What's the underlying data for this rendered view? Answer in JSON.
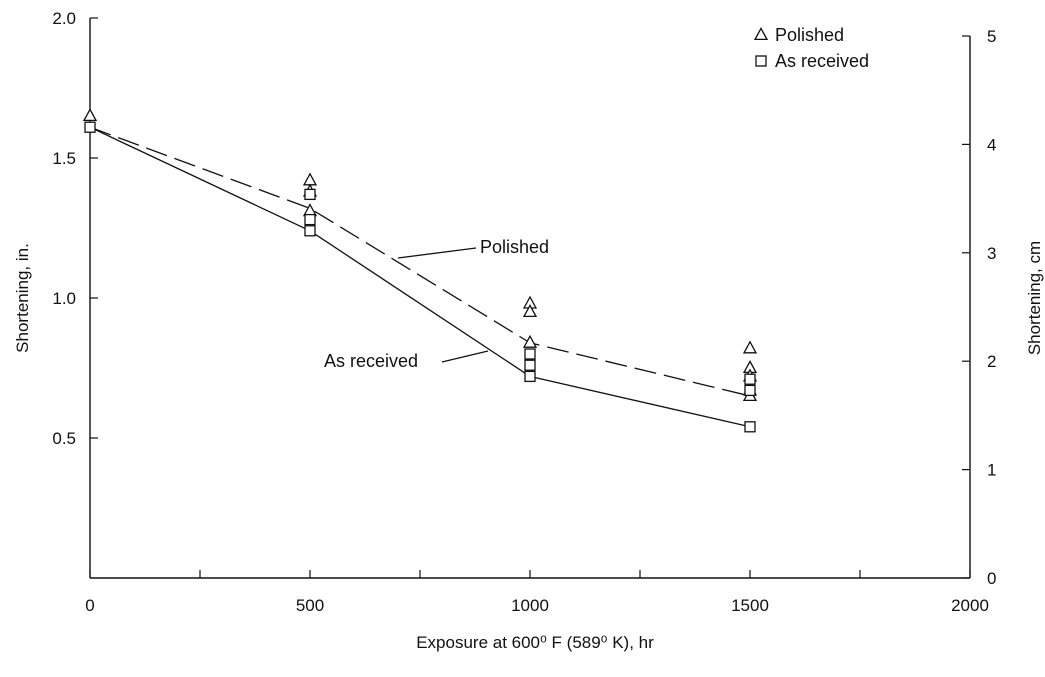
{
  "chart_data": {
    "type": "scatter",
    "xlabel": "Exposure at 600⁰ F (589⁰ K), hr",
    "ylabel": "Shortening, in.",
    "ylabel_right": "Shortening, cm",
    "xlim": [
      0,
      2000
    ],
    "ylim": [
      0,
      2.0
    ],
    "ylim_right": [
      0,
      5
    ],
    "x_ticks": [
      0,
      500,
      1000,
      1500,
      2000
    ],
    "x_minor_ticks": [
      250,
      750,
      1250,
      1750
    ],
    "y_ticks": [
      0.5,
      1.0,
      1.5,
      2.0
    ],
    "y_tick_labels": [
      "0.5",
      "1.0",
      "1.5",
      "2.0"
    ],
    "y_right_ticks": [
      0,
      1,
      2,
      3,
      4,
      5
    ],
    "grid": false,
    "legend_position": "top-right",
    "series": [
      {
        "name": "Polished",
        "marker": "triangle",
        "points": [
          [
            0,
            1.65
          ],
          [
            500,
            1.42
          ],
          [
            500,
            1.38
          ],
          [
            500,
            1.31
          ],
          [
            1000,
            0.98
          ],
          [
            1000,
            0.95
          ],
          [
            1000,
            0.84
          ],
          [
            1500,
            0.82
          ],
          [
            1500,
            0.75
          ],
          [
            1500,
            0.72
          ],
          [
            1500,
            0.67
          ],
          [
            1500,
            0.65
          ]
        ],
        "fit_line": {
          "style": "dashed",
          "x": [
            0,
            500,
            1000,
            1500
          ],
          "y": [
            1.61,
            1.32,
            0.84,
            0.65
          ]
        }
      },
      {
        "name": "As received",
        "marker": "square",
        "points": [
          [
            0,
            1.61
          ],
          [
            500,
            1.37
          ],
          [
            500,
            1.28
          ],
          [
            500,
            1.24
          ],
          [
            1000,
            0.8
          ],
          [
            1000,
            0.76
          ],
          [
            1000,
            0.72
          ],
          [
            1500,
            0.71
          ],
          [
            1500,
            0.67
          ],
          [
            1500,
            0.54
          ]
        ],
        "fit_line": {
          "style": "solid",
          "x": [
            0,
            500,
            1000,
            1500
          ],
          "y": [
            1.61,
            1.24,
            0.72,
            0.54
          ]
        }
      }
    ],
    "annotations": [
      {
        "text": "Polished",
        "target_series": "Polished"
      },
      {
        "text": "As received",
        "target_series": "As received"
      }
    ]
  }
}
